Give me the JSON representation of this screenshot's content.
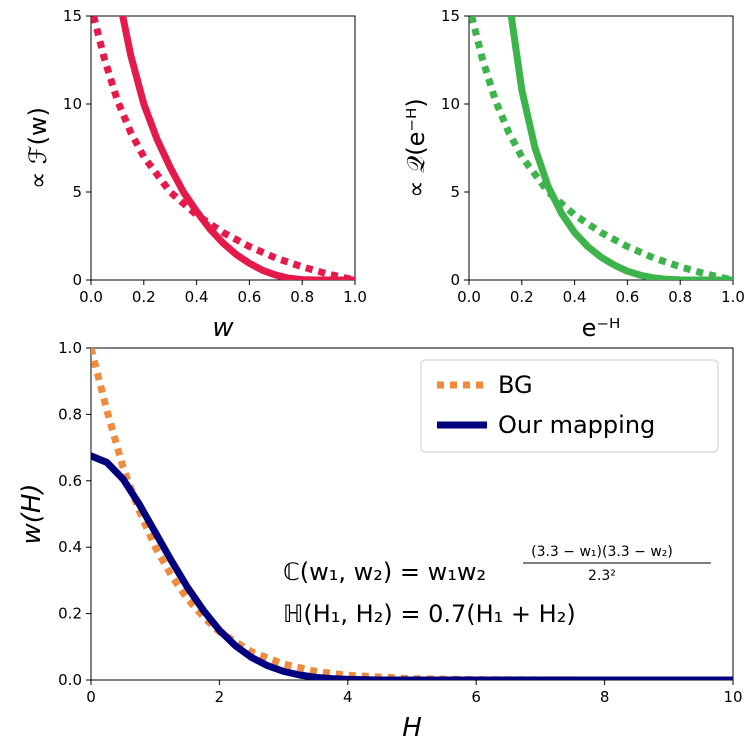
{
  "chart_data": [
    {
      "id": "top_left",
      "type": "line",
      "xlabel": "w",
      "ylabel": "∝ ℱ(w)",
      "xlim": [
        0,
        1
      ],
      "ylim": [
        0,
        15
      ],
      "xticks": [
        "0.0",
        "0.2",
        "0.4",
        "0.6",
        "0.8",
        "1.0"
      ],
      "yticks": [
        "0",
        "5",
        "10",
        "15"
      ],
      "series": [
        {
          "name": "BG",
          "style": "dotted",
          "color": "#e41a4a",
          "x": [
            0.01,
            0.05,
            0.1,
            0.15,
            0.2,
            0.3,
            0.4,
            0.5,
            0.6,
            0.7,
            0.8,
            0.9,
            1.0
          ],
          "y": [
            15.0,
            12.6,
            10.2,
            8.4,
            7.0,
            5.0,
            3.7,
            2.7,
            1.9,
            1.25,
            0.75,
            0.33,
            0.0
          ]
        },
        {
          "name": "Our mapping",
          "style": "solid",
          "color": "#e41a4a",
          "x": [
            0.12,
            0.15,
            0.2,
            0.25,
            0.3,
            0.35,
            0.4,
            0.45,
            0.5,
            0.55,
            0.6,
            0.65,
            0.7,
            0.75,
            0.8,
            0.85,
            0.9,
            0.95,
            1.0
          ],
          "y": [
            15.0,
            12.8,
            10.0,
            8.0,
            6.4,
            5.0,
            3.9,
            2.9,
            2.1,
            1.45,
            0.95,
            0.55,
            0.28,
            0.1,
            0.02,
            0.0,
            0.0,
            0.0,
            0.0
          ]
        }
      ]
    },
    {
      "id": "top_right",
      "type": "line",
      "xlabel": "e⁻ᴴ",
      "ylabel": "∝ 𝒬(e⁻ᴴ)",
      "xlim": [
        0,
        1
      ],
      "ylim": [
        0,
        15
      ],
      "xticks": [
        "0.0",
        "0.2",
        "0.4",
        "0.6",
        "0.8",
        "1.0"
      ],
      "yticks": [
        "0",
        "5",
        "10",
        "15"
      ],
      "series": [
        {
          "name": "BG",
          "style": "dotted",
          "color": "#3cb44b",
          "x": [
            0.01,
            0.05,
            0.1,
            0.15,
            0.2,
            0.3,
            0.4,
            0.5,
            0.6,
            0.7,
            0.8,
            0.9,
            1.0
          ],
          "y": [
            15.0,
            12.6,
            10.2,
            8.4,
            7.0,
            5.0,
            3.7,
            2.7,
            1.9,
            1.25,
            0.75,
            0.33,
            0.0
          ]
        },
        {
          "name": "Our mapping",
          "style": "solid",
          "color": "#3cb44b",
          "x": [
            0.16,
            0.2,
            0.25,
            0.3,
            0.35,
            0.4,
            0.45,
            0.5,
            0.55,
            0.6,
            0.65,
            0.7,
            0.75,
            0.8,
            0.85,
            0.9,
            0.95,
            1.0
          ],
          "y": [
            15.0,
            10.8,
            7.5,
            5.3,
            3.8,
            2.7,
            1.9,
            1.3,
            0.85,
            0.5,
            0.27,
            0.12,
            0.04,
            0.01,
            0.0,
            0.0,
            0.0,
            0.0
          ]
        }
      ]
    },
    {
      "id": "bottom",
      "type": "line",
      "xlabel": "H",
      "ylabel": "w(H)",
      "xlim": [
        0,
        10
      ],
      "ylim": [
        0,
        1
      ],
      "xticks": [
        "0",
        "2",
        "4",
        "6",
        "8",
        "10"
      ],
      "yticks": [
        "0.0",
        "0.2",
        "0.4",
        "0.6",
        "0.8",
        "1.0"
      ],
      "legend": "upper right",
      "annotations": [
        "ℂ(w₁, w₂) = w₁w₂^((3.3 − w₁)(3.3 − w₂)/2.3²)",
        "ℍ(H₁, H₂) = 0.7(H₁ + H₂)"
      ],
      "series": [
        {
          "name": "BG",
          "style": "dotted",
          "color": "#f08a3c",
          "x": [
            0,
            0.25,
            0.5,
            0.75,
            1.0,
            1.25,
            1.5,
            1.75,
            2.0,
            2.5,
            3.0,
            3.5,
            4.0,
            5.0,
            6.0,
            8.0,
            10.0
          ],
          "y": [
            1.0,
            0.81,
            0.64,
            0.51,
            0.4,
            0.315,
            0.245,
            0.19,
            0.145,
            0.085,
            0.048,
            0.026,
            0.014,
            0.004,
            0.001,
            0.0,
            0.0
          ]
        },
        {
          "name": "Our mapping",
          "style": "solid",
          "color": "#00007f",
          "x": [
            0,
            0.25,
            0.5,
            0.75,
            1.0,
            1.25,
            1.5,
            1.75,
            2.0,
            2.25,
            2.5,
            2.75,
            3.0,
            3.25,
            3.5,
            3.75,
            4.0,
            4.5,
            5.0,
            6.0,
            8.0,
            10.0
          ],
          "y": [
            0.675,
            0.655,
            0.605,
            0.53,
            0.445,
            0.36,
            0.28,
            0.21,
            0.15,
            0.103,
            0.068,
            0.043,
            0.026,
            0.015,
            0.008,
            0.004,
            0.002,
            0.0,
            0.0,
            0.0,
            0.0,
            0.0
          ]
        }
      ]
    }
  ],
  "legend": {
    "bg_label": "BG",
    "ours_label": "Our mapping"
  },
  "annotations": {
    "line1_main": "ℂ(w₁, w₂) = w₁w₂",
    "line1_sup_num": "(3.3 − w₁)(3.3 − w₂)",
    "line1_sup_den": "2.3²",
    "line2": "ℍ(H₁, H₂) = 0.7(H₁ + H₂)"
  },
  "colors": {
    "red": "#e41a4a",
    "green": "#3cb44b",
    "orange": "#f08a3c",
    "navy": "#00007f"
  }
}
